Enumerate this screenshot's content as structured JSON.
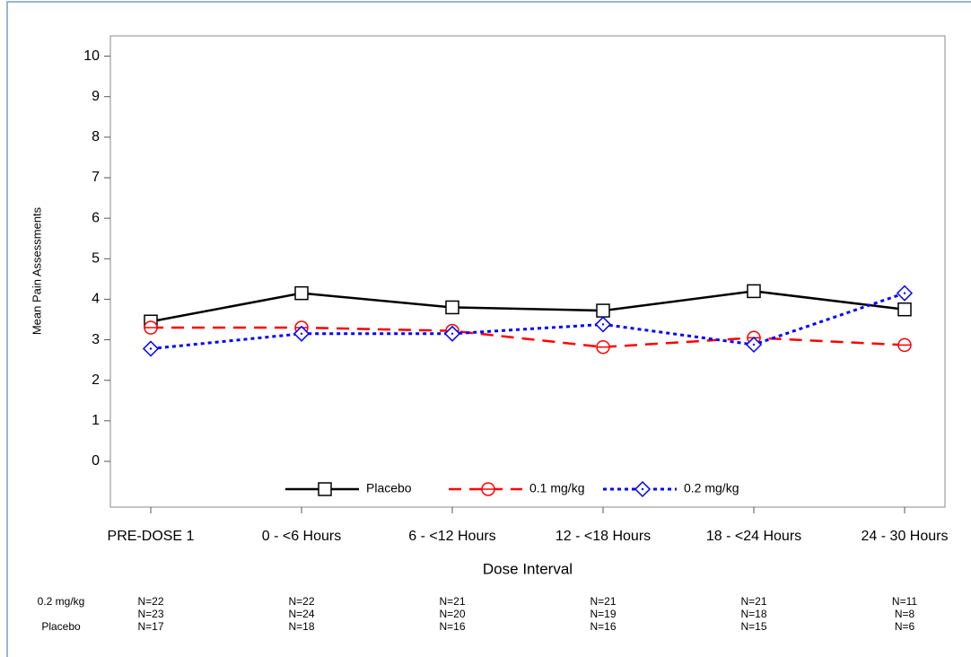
{
  "chart_data": {
    "type": "line",
    "x_label": "Dose Interval",
    "y_label": "Mean Pain Assessments",
    "categories": [
      "PRE-DOSE 1",
      "0 - <6 Hours",
      "6 - <12 Hours",
      "12 - <18 Hours",
      "18 - <24 Hours",
      "24 - 30 Hours"
    ],
    "series": [
      {
        "name": "Placebo",
        "color": "#000000",
        "values": [
          3.45,
          4.15,
          3.8,
          3.72,
          4.2,
          3.75
        ]
      },
      {
        "name": "0.1 mg/kg",
        "color": "#ff0000",
        "values": [
          3.3,
          3.3,
          3.22,
          2.82,
          3.05,
          2.87
        ]
      },
      {
        "name": "0.2 mg/kg",
        "color": "#0000ff",
        "values": [
          2.78,
          3.15,
          3.15,
          3.38,
          2.88,
          4.15
        ]
      }
    ],
    "ylim": [
      -1.13,
      10.5
    ],
    "yticks": [
      0,
      1,
      2,
      3,
      4,
      5,
      6,
      7,
      8,
      9,
      10
    ],
    "legend": "bottom",
    "n_table": [
      {
        "label": "0.2 mg/kg",
        "values": [
          "N=22",
          "N=22",
          "N=21",
          "N=21",
          "N=21",
          "N=11"
        ]
      },
      {
        "label": null,
        "values": [
          "N=23",
          "N=24",
          "N=20",
          "N=19",
          "N=18",
          "N=8"
        ]
      },
      {
        "label": "Placebo",
        "values": [
          "N=17",
          "N=18",
          "N=16",
          "N=16",
          "N=15",
          "N=6"
        ]
      }
    ]
  }
}
